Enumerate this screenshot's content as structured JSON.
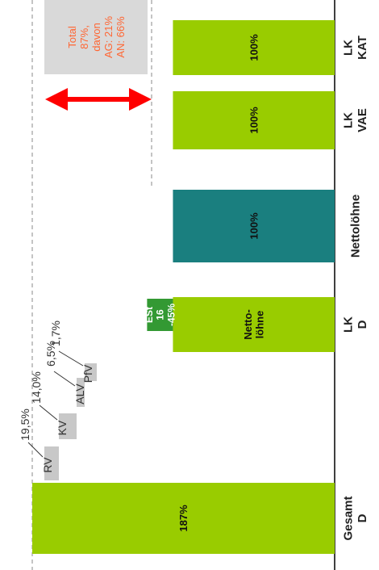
{
  "chart_data": {
    "type": "bar",
    "orientation": "rotated-90-clockwise",
    "title": "",
    "categories": [
      "Gesamt D",
      "LK D",
      "Nettolöhne",
      "LK VAE",
      "LK KAT"
    ],
    "bars": [
      {
        "category": "Gesamt D",
        "segments": [
          {
            "label": "187%",
            "value": 187,
            "color": "#99cc00"
          }
        ]
      },
      {
        "category": "LK D",
        "segments": [
          {
            "label": "Netto-\nlöhne",
            "value": 100,
            "color": "#99cc00"
          },
          {
            "label": "ESt\n16\n-45%",
            "value": 16,
            "color": "#339933"
          }
        ]
      },
      {
        "category": "Nettolöhne",
        "segments": [
          {
            "label": "100%",
            "value": 100,
            "color": "#1a7f7f"
          }
        ]
      },
      {
        "category": "LK VAE",
        "segments": [
          {
            "label": "100%",
            "value": 100,
            "color": "#99cc00"
          }
        ]
      },
      {
        "category": "LK KAT",
        "segments": [
          {
            "label": "100%",
            "value": 100,
            "color": "#99cc00"
          }
        ]
      }
    ],
    "contributions": [
      {
        "abbr": "RV",
        "value": "19,5%"
      },
      {
        "abbr": "KV",
        "value": "14,0%"
      },
      {
        "abbr": "ALV",
        "value": "6,5%"
      },
      {
        "abbr": "PfV",
        "value": "1,7%"
      }
    ],
    "annotation": {
      "text": "Total\n87%,\ndavon\nAG: 21%\nAN: 66%",
      "color": "#ff6633",
      "bg": "#d9d9d9"
    },
    "arrow_color": "#ff0000",
    "value_axis_max": 200
  }
}
